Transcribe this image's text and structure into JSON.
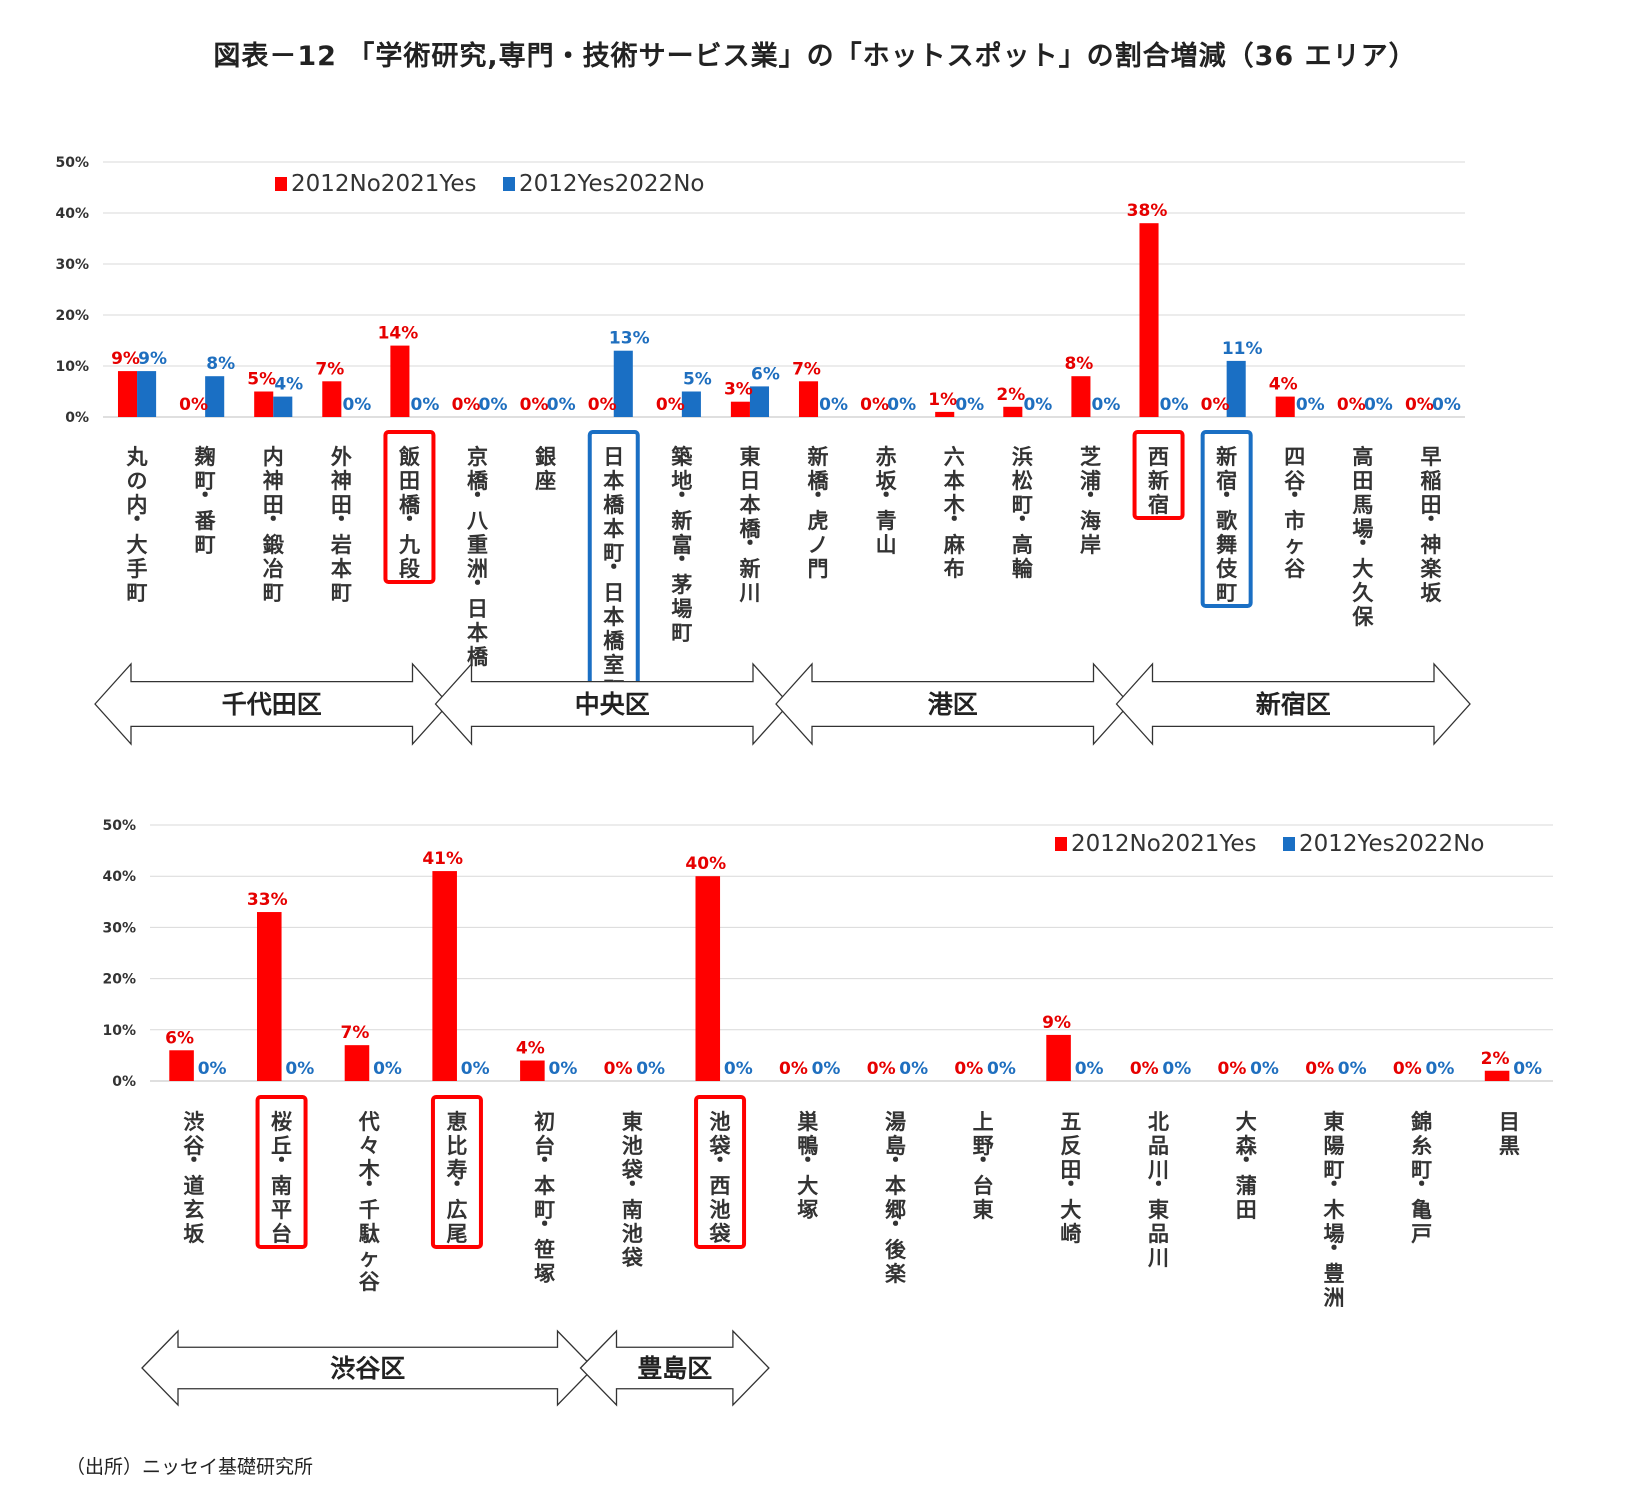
{
  "title": "図表－12 「学術研究,専門・技術サービス業」の「ホットスポット」の割合増減（36 エリア）",
  "source": "（出所）ニッセイ基礎研究所",
  "colors": {
    "red": "#ff0000",
    "blue": "#1a6fc4",
    "grid": "#d9d9d9",
    "redText": "#e60000",
    "blueText": "#1f6fbf"
  },
  "chart_data": [
    {
      "type": "bar",
      "title": "",
      "legend": [
        "2012No2021Yes",
        "2012Yes2022No"
      ],
      "legend_position": "top-left",
      "ylim": [
        0,
        50
      ],
      "yticks": [
        "0%",
        "10%",
        "20%",
        "30%",
        "40%",
        "50%"
      ],
      "categories": [
        "丸の内・大手町",
        "麹町・番町",
        "内神田・鍛冶町",
        "外神田・岩本町",
        "飯田橋・九段",
        "京橋・八重洲・日本橋",
        "銀座",
        "日本橋本町・日本橋室町",
        "築地・新富・茅場町",
        "東日本橋・新川",
        "新橋・虎ノ門",
        "赤坂・青山",
        "六本木・麻布",
        "浜松町・高輪",
        "芝浦・海岸",
        "西新宿",
        "新宿・歌舞伎町",
        "四谷・市ヶ谷",
        "高田馬場・大久保",
        "早稲田・神楽坂"
      ],
      "series": [
        {
          "name": "2012No2021Yes",
          "values": [
            9,
            0,
            5,
            7,
            14,
            0,
            0,
            0,
            0,
            3,
            7,
            0,
            1,
            2,
            8,
            38,
            0,
            4,
            0,
            0
          ]
        },
        {
          "name": "2012Yes2022No",
          "values": [
            9,
            8,
            4,
            0,
            0,
            0,
            0,
            13,
            5,
            6,
            0,
            0,
            0,
            0,
            0,
            0,
            11,
            0,
            0,
            0
          ]
        }
      ],
      "highlighted": [
        {
          "category": "飯田橋・九段",
          "color": "red"
        },
        {
          "category": "日本橋本町・日本橋室町",
          "color": "blue"
        },
        {
          "category": "西新宿",
          "color": "red"
        },
        {
          "category": "新宿・歌舞伎町",
          "color": "blue"
        }
      ],
      "wards": [
        {
          "label": "千代田区",
          "from": 0,
          "to": 4
        },
        {
          "label": "中央区",
          "from": 5,
          "to": 9
        },
        {
          "label": "港区",
          "from": 10,
          "to": 14
        },
        {
          "label": "新宿区",
          "from": 15,
          "to": 19
        }
      ]
    },
    {
      "type": "bar",
      "title": "",
      "legend": [
        "2012No2021Yes",
        "2012Yes2022No"
      ],
      "legend_position": "top-right",
      "ylim": [
        0,
        50
      ],
      "yticks": [
        "0%",
        "10%",
        "20%",
        "30%",
        "40%",
        "50%"
      ],
      "categories": [
        "渋谷・道玄坂",
        "桜丘・南平台",
        "代々木・千駄ヶ谷",
        "恵比寿・広尾",
        "初台・本町・笹塚",
        "東池袋・南池袋",
        "池袋・西池袋",
        "巣鴨・大塚",
        "湯島・本郷・後楽",
        "上野・台東",
        "五反田・大崎",
        "北品川・東品川",
        "大森・蒲田",
        "東陽町・木場・豊洲",
        "錦糸町・亀戸",
        "目黒"
      ],
      "series": [
        {
          "name": "2012No2021Yes",
          "values": [
            6,
            33,
            7,
            41,
            4,
            0,
            40,
            0,
            0,
            0,
            9,
            0,
            0,
            0,
            0,
            2
          ]
        },
        {
          "name": "2012Yes2022No",
          "values": [
            0,
            0,
            0,
            0,
            0,
            0,
            0,
            0,
            0,
            0,
            0,
            0,
            0,
            0,
            0,
            0
          ]
        }
      ],
      "highlighted": [
        {
          "category": "桜丘・南平台",
          "color": "red"
        },
        {
          "category": "恵比寿・広尾",
          "color": "red"
        },
        {
          "category": "池袋・西池袋",
          "color": "red"
        }
      ],
      "wards": [
        {
          "label": "渋谷区",
          "from": 0,
          "to": 4
        },
        {
          "label": "豊島区",
          "from": 5,
          "to": 6
        }
      ]
    }
  ]
}
